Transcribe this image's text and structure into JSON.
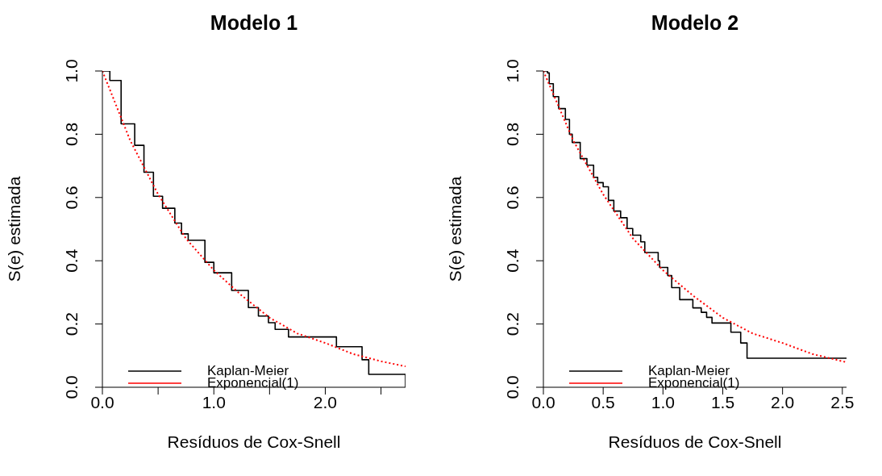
{
  "chart_data": [
    {
      "type": "step",
      "title": "Modelo 1",
      "xlabel": "Resíduos de Cox-Snell",
      "ylabel": "S(e) estimada",
      "xlim": [
        0,
        2.72
      ],
      "ylim": [
        0,
        1
      ],
      "xticks": [
        {
          "value": 0,
          "label": "0.0"
        },
        {
          "value": 0.5,
          "label": null
        },
        {
          "value": 1,
          "label": "1.0"
        },
        {
          "value": 1.5,
          "label": null
        },
        {
          "value": 2,
          "label": "2.0"
        },
        {
          "value": 2.5,
          "label": null
        }
      ],
      "yticks": [
        {
          "value": 0,
          "label": "0.0"
        },
        {
          "value": 0.2,
          "label": "0.2"
        },
        {
          "value": 0.4,
          "label": "0.4"
        },
        {
          "value": 0.6,
          "label": "0.6"
        },
        {
          "value": 0.8,
          "label": "0.8"
        },
        {
          "value": 1,
          "label": "1.0"
        }
      ],
      "grid": false,
      "legend": "bottom",
      "series": [
        {
          "name": "Kaplan-Meier",
          "type": "step",
          "color": "#000000",
          "line_style": "solid",
          "x": [
            0,
            0.067,
            0.168,
            0.29,
            0.373,
            0.458,
            0.54,
            0.65,
            0.71,
            0.77,
            0.92,
            1.0,
            1.16,
            1.31,
            1.4,
            1.49,
            1.55,
            1.67,
            2.1,
            2.33,
            2.39,
            2.72
          ],
          "values": [
            1,
            0.97,
            0.833,
            0.765,
            0.68,
            0.604,
            0.566,
            0.519,
            0.485,
            0.465,
            0.395,
            0.362,
            0.306,
            0.252,
            0.225,
            0.204,
            0.183,
            0.159,
            0.128,
            0.087,
            0.041,
            0
          ]
        },
        {
          "name": "Exponencial(1)",
          "type": "line",
          "color": "#ff0000",
          "line_style": "dotted",
          "x": [
            0,
            0.25,
            0.5,
            0.75,
            1,
            1.25,
            1.5,
            1.75,
            2,
            2.25,
            2.5,
            2.72
          ],
          "values": [
            1,
            0.78,
            0.61,
            0.47,
            0.37,
            0.29,
            0.22,
            0.17,
            0.14,
            0.105,
            0.082,
            0.066
          ]
        }
      ]
    },
    {
      "type": "step",
      "title": "Modelo 2",
      "xlabel": "Resíduos de Cox-Snell",
      "ylabel": "S(e) estimada",
      "xlim": [
        0,
        2.535
      ],
      "ylim": [
        0,
        1
      ],
      "xticks": [
        {
          "value": 0,
          "label": "0.0"
        },
        {
          "value": 0.5,
          "label": "0.5"
        },
        {
          "value": 1,
          "label": "1.0"
        },
        {
          "value": 1.5,
          "label": "1.5"
        },
        {
          "value": 2,
          "label": "2.0"
        },
        {
          "value": 2.5,
          "label": "2.5"
        }
      ],
      "yticks": [
        {
          "value": 0,
          "label": "0.0"
        },
        {
          "value": 0.2,
          "label": "0.2"
        },
        {
          "value": 0.4,
          "label": "0.4"
        },
        {
          "value": 0.6,
          "label": "0.6"
        },
        {
          "value": 0.8,
          "label": "0.8"
        },
        {
          "value": 1,
          "label": "1.0"
        }
      ],
      "grid": false,
      "legend": "bottom",
      "series": [
        {
          "name": "Kaplan-Meier",
          "type": "step",
          "color": "#000000",
          "line_style": "solid",
          "x": [
            0,
            0.034,
            0.049,
            0.083,
            0.128,
            0.184,
            0.218,
            0.241,
            0.308,
            0.364,
            0.42,
            0.454,
            0.5,
            0.544,
            0.589,
            0.646,
            0.7,
            0.747,
            0.814,
            0.848,
            0.96,
            0.972,
            1.04,
            1.073,
            1.14,
            1.25,
            1.32,
            1.365,
            1.41,
            1.568,
            1.65,
            1.703,
            2.535
          ],
          "values": [
            1,
            0.994,
            0.96,
            0.919,
            0.881,
            0.847,
            0.8,
            0.774,
            0.723,
            0.702,
            0.664,
            0.647,
            0.634,
            0.591,
            0.557,
            0.536,
            0.502,
            0.481,
            0.46,
            0.426,
            0.4,
            0.379,
            0.353,
            0.315,
            0.277,
            0.251,
            0.237,
            0.221,
            0.203,
            0.174,
            0.14,
            0.092,
            0.092
          ]
        },
        {
          "name": "Exponencial(1)",
          "type": "line",
          "color": "#ff0000",
          "line_style": "dotted",
          "x": [
            0,
            0.25,
            0.5,
            0.75,
            1,
            1.25,
            1.5,
            1.75,
            2,
            2.25,
            2.535
          ],
          "values": [
            1,
            0.78,
            0.61,
            0.47,
            0.37,
            0.29,
            0.22,
            0.17,
            0.14,
            0.105,
            0.079
          ]
        }
      ]
    }
  ]
}
